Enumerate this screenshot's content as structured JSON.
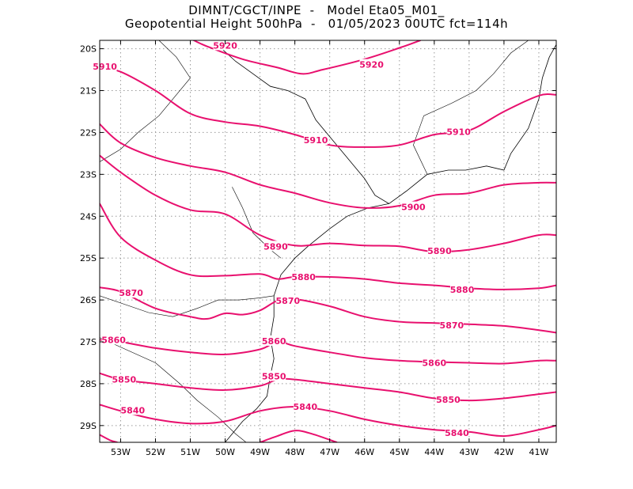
{
  "title": {
    "line1": "DIMNT/CGCT/INPE  -   Model Eta05_M01_",
    "line2": "Geopotential Height 500hPa  -   01/05/2023 00UTC fct=114h"
  },
  "colors": {
    "contour": "#e8106e",
    "coast": "#000000",
    "grid": "#9a9a9a"
  },
  "map": {
    "lon_range": [
      -53.6,
      -40.5
    ],
    "lat_range": [
      -29.4,
      -19.8
    ],
    "lon_ticks": [
      {
        "value": -53,
        "label": "53W"
      },
      {
        "value": -52,
        "label": "52W"
      },
      {
        "value": -51,
        "label": "51W"
      },
      {
        "value": -50,
        "label": "50W"
      },
      {
        "value": -49,
        "label": "49W"
      },
      {
        "value": -48,
        "label": "48W"
      },
      {
        "value": -47,
        "label": "47W"
      },
      {
        "value": -46,
        "label": "46W"
      },
      {
        "value": -45,
        "label": "45W"
      },
      {
        "value": -44,
        "label": "44W"
      },
      {
        "value": -43,
        "label": "43W"
      },
      {
        "value": -42,
        "label": "42W"
      },
      {
        "value": -41,
        "label": "41W"
      }
    ],
    "lat_ticks": [
      {
        "value": -20,
        "label": "20S"
      },
      {
        "value": -21,
        "label": "21S"
      },
      {
        "value": -22,
        "label": "22S"
      },
      {
        "value": -23,
        "label": "23S"
      },
      {
        "value": -24,
        "label": "24S"
      },
      {
        "value": -25,
        "label": "25S"
      },
      {
        "value": -26,
        "label": "26S"
      },
      {
        "value": -27,
        "label": "27S"
      },
      {
        "value": -28,
        "label": "28S"
      },
      {
        "value": -29,
        "label": "29S"
      }
    ]
  },
  "contours": [
    {
      "level": "5920",
      "points": [
        [
          -50.9,
          -19.8
        ],
        [
          -50.5,
          -19.95
        ],
        [
          -49.5,
          -20.25
        ],
        [
          -48.5,
          -20.45
        ],
        [
          -47.8,
          -20.6
        ],
        [
          -47.2,
          -20.5
        ],
        [
          -46.0,
          -20.25
        ],
        [
          -45.0,
          -19.98
        ],
        [
          -44.4,
          -19.8
        ]
      ],
      "labels": [
        {
          "text": "5920",
          "lon": -50.0,
          "lat": -19.92
        },
        {
          "text": "5920",
          "lon": -45.8,
          "lat": -20.38
        }
      ]
    },
    {
      "level": "5910",
      "points": [
        [
          -53.6,
          -20.45
        ],
        [
          -53.0,
          -20.55
        ],
        [
          -52.0,
          -21.0
        ],
        [
          -51.0,
          -21.55
        ],
        [
          -50.0,
          -21.75
        ],
        [
          -49.0,
          -21.85
        ],
        [
          -48.0,
          -22.05
        ],
        [
          -47.0,
          -22.3
        ],
        [
          -46.0,
          -22.35
        ],
        [
          -45.0,
          -22.3
        ],
        [
          -44.0,
          -22.05
        ],
        [
          -43.0,
          -21.95
        ],
        [
          -42.0,
          -21.5
        ],
        [
          -41.0,
          -21.12
        ],
        [
          -40.5,
          -21.1
        ]
      ],
      "labels": [
        {
          "text": "5910",
          "lon": -53.45,
          "lat": -20.42
        },
        {
          "text": "5910",
          "lon": -47.4,
          "lat": -22.18
        },
        {
          "text": "5910",
          "lon": -43.3,
          "lat": -21.98
        }
      ]
    },
    {
      "level": "5900",
      "points": [
        [
          -53.6,
          -21.8
        ],
        [
          -53.0,
          -22.25
        ],
        [
          -52.0,
          -22.6
        ],
        [
          -51.0,
          -22.8
        ],
        [
          -50.0,
          -22.95
        ],
        [
          -49.0,
          -23.25
        ],
        [
          -48.0,
          -23.45
        ],
        [
          -47.0,
          -23.68
        ],
        [
          -46.0,
          -23.8
        ],
        [
          -45.0,
          -23.75
        ],
        [
          -44.0,
          -23.5
        ],
        [
          -43.0,
          -23.45
        ],
        [
          -42.0,
          -23.25
        ],
        [
          -41.0,
          -23.2
        ],
        [
          -40.5,
          -23.2
        ]
      ],
      "labels": [
        {
          "text": "5900",
          "lon": -44.6,
          "lat": -23.78
        }
      ]
    },
    {
      "level": "5890",
      "points": [
        [
          -53.6,
          -22.55
        ],
        [
          -53.0,
          -22.95
        ],
        [
          -52.0,
          -23.5
        ],
        [
          -51.0,
          -23.85
        ],
        [
          -50.0,
          -23.95
        ],
        [
          -49.0,
          -24.45
        ],
        [
          -48.0,
          -24.7
        ],
        [
          -47.0,
          -24.65
        ],
        [
          -46.0,
          -24.7
        ],
        [
          -45.0,
          -24.72
        ],
        [
          -44.0,
          -24.85
        ],
        [
          -43.0,
          -24.8
        ],
        [
          -42.0,
          -24.65
        ],
        [
          -41.0,
          -24.45
        ],
        [
          -40.5,
          -24.45
        ]
      ],
      "labels": [
        {
          "text": "5890",
          "lon": -48.55,
          "lat": -24.72
        },
        {
          "text": "5890",
          "lon": -43.85,
          "lat": -24.83
        }
      ]
    },
    {
      "level": "5880",
      "points": [
        [
          -53.6,
          -23.7
        ],
        [
          -53.0,
          -24.5
        ],
        [
          -52.0,
          -25.05
        ],
        [
          -51.0,
          -25.4
        ],
        [
          -50.0,
          -25.42
        ],
        [
          -49.0,
          -25.38
        ],
        [
          -48.5,
          -25.5
        ],
        [
          -48.0,
          -25.45
        ],
        [
          -47.0,
          -25.45
        ],
        [
          -46.0,
          -25.5
        ],
        [
          -45.0,
          -25.6
        ],
        [
          -44.0,
          -25.65
        ],
        [
          -43.0,
          -25.72
        ],
        [
          -42.0,
          -25.75
        ],
        [
          -41.0,
          -25.72
        ],
        [
          -40.5,
          -25.65
        ]
      ],
      "labels": [
        {
          "text": "5880",
          "lon": -47.75,
          "lat": -25.45
        },
        {
          "text": "5880",
          "lon": -43.2,
          "lat": -25.75
        }
      ]
    },
    {
      "level": "5870",
      "points": [
        [
          -53.6,
          -25.7
        ],
        [
          -53.0,
          -25.8
        ],
        [
          -52.0,
          -26.2
        ],
        [
          -51.0,
          -26.4
        ],
        [
          -50.5,
          -26.45
        ],
        [
          -50.0,
          -26.32
        ],
        [
          -49.5,
          -26.35
        ],
        [
          -49.0,
          -26.25
        ],
        [
          -48.5,
          -26.02
        ],
        [
          -48.0,
          -25.98
        ],
        [
          -47.0,
          -26.15
        ],
        [
          -46.0,
          -26.4
        ],
        [
          -45.0,
          -26.52
        ],
        [
          -44.0,
          -26.55
        ],
        [
          -43.0,
          -26.58
        ],
        [
          -42.0,
          -26.62
        ],
        [
          -41.0,
          -26.72
        ],
        [
          -40.5,
          -26.78
        ]
      ],
      "labels": [
        {
          "text": "5870",
          "lon": -52.7,
          "lat": -25.83
        },
        {
          "text": "5870",
          "lon": -48.2,
          "lat": -26.02
        },
        {
          "text": "5870",
          "lon": -43.5,
          "lat": -26.6
        }
      ]
    },
    {
      "level": "5860",
      "points": [
        [
          -53.6,
          -26.95
        ],
        [
          -53.0,
          -27.0
        ],
        [
          -52.0,
          -27.15
        ],
        [
          -51.0,
          -27.25
        ],
        [
          -50.0,
          -27.3
        ],
        [
          -49.0,
          -27.18
        ],
        [
          -48.5,
          -27.0
        ],
        [
          -48.0,
          -27.1
        ],
        [
          -47.0,
          -27.25
        ],
        [
          -46.0,
          -27.38
        ],
        [
          -45.0,
          -27.45
        ],
        [
          -44.0,
          -27.48
        ],
        [
          -43.0,
          -27.5
        ],
        [
          -42.0,
          -27.52
        ],
        [
          -41.0,
          -27.45
        ],
        [
          -40.5,
          -27.45
        ]
      ],
      "labels": [
        {
          "text": "5860",
          "lon": -53.2,
          "lat": -26.95
        },
        {
          "text": "5860",
          "lon": -48.6,
          "lat": -26.98
        },
        {
          "text": "5860",
          "lon": -44.0,
          "lat": -27.5
        }
      ]
    },
    {
      "level": "5850",
      "points": [
        [
          -53.6,
          -27.75
        ],
        [
          -53.0,
          -27.9
        ],
        [
          -52.0,
          -28.0
        ],
        [
          -51.0,
          -28.1
        ],
        [
          -50.0,
          -28.15
        ],
        [
          -49.0,
          -28.05
        ],
        [
          -48.5,
          -27.9
        ],
        [
          -48.0,
          -27.9
        ],
        [
          -47.0,
          -28.0
        ],
        [
          -46.0,
          -28.1
        ],
        [
          -45.0,
          -28.2
        ],
        [
          -44.0,
          -28.35
        ],
        [
          -43.0,
          -28.4
        ],
        [
          -42.0,
          -28.35
        ],
        [
          -41.0,
          -28.25
        ],
        [
          -40.5,
          -28.2
        ]
      ],
      "labels": [
        {
          "text": "5850",
          "lon": -52.9,
          "lat": -27.9
        },
        {
          "text": "5850",
          "lon": -48.6,
          "lat": -27.82
        },
        {
          "text": "5850",
          "lon": -43.6,
          "lat": -28.38
        }
      ]
    },
    {
      "level": "5840",
      "points": [
        [
          -53.6,
          -28.5
        ],
        [
          -53.0,
          -28.65
        ],
        [
          -52.0,
          -28.85
        ],
        [
          -51.0,
          -28.95
        ],
        [
          -50.0,
          -28.9
        ],
        [
          -49.0,
          -28.65
        ],
        [
          -48.0,
          -28.55
        ],
        [
          -47.0,
          -28.65
        ],
        [
          -46.0,
          -28.85
        ],
        [
          -45.0,
          -29.0
        ],
        [
          -44.0,
          -29.1
        ],
        [
          -43.0,
          -29.15
        ],
        [
          -42.0,
          -29.25
        ],
        [
          -41.0,
          -29.1
        ],
        [
          -40.5,
          -29.0
        ]
      ],
      "labels": [
        {
          "text": "5840",
          "lon": -52.65,
          "lat": -28.63
        },
        {
          "text": "5840",
          "lon": -47.7,
          "lat": -28.55
        },
        {
          "text": "5840",
          "lon": -43.35,
          "lat": -29.17
        }
      ]
    },
    {
      "level": "5830",
      "points": [
        [
          -53.6,
          -29.22
        ],
        [
          -53.3,
          -29.35
        ],
        [
          -53.1,
          -29.4
        ]
      ],
      "labels": []
    },
    {
      "level": "5830",
      "points": [
        [
          -49.0,
          -29.4
        ],
        [
          -48.5,
          -29.25
        ],
        [
          -48.0,
          -29.12
        ],
        [
          -47.5,
          -29.2
        ],
        [
          -46.8,
          -29.4
        ]
      ],
      "labels": []
    }
  ],
  "coastline": [
    [
      [
        -50.1,
        -20.0
      ],
      [
        -49.7,
        -20.3
      ],
      [
        -49.2,
        -20.6
      ],
      [
        -48.7,
        -20.9
      ],
      [
        -48.2,
        -21.0
      ],
      [
        -47.7,
        -21.2
      ],
      [
        -47.4,
        -21.7
      ],
      [
        -47.0,
        -22.1
      ],
      [
        -46.6,
        -22.5
      ],
      [
        -46.3,
        -22.8
      ],
      [
        -46.0,
        -23.1
      ],
      [
        -45.7,
        -23.5
      ],
      [
        -45.3,
        -23.7
      ],
      [
        -44.8,
        -23.4
      ],
      [
        -44.2,
        -23.0
      ],
      [
        -43.6,
        -22.9
      ],
      [
        -43.1,
        -22.9
      ],
      [
        -42.5,
        -22.8
      ],
      [
        -42.0,
        -22.9
      ],
      [
        -41.8,
        -22.5
      ],
      [
        -41.3,
        -21.9
      ],
      [
        -41.0,
        -21.2
      ],
      [
        -40.9,
        -20.7
      ],
      [
        -40.7,
        -20.2
      ],
      [
        -40.5,
        -19.9
      ]
    ],
    [
      [
        -45.3,
        -23.7
      ],
      [
        -45.9,
        -23.8
      ],
      [
        -46.5,
        -24.0
      ],
      [
        -47.0,
        -24.3
      ],
      [
        -47.6,
        -24.7
      ],
      [
        -48.0,
        -25.0
      ],
      [
        -48.4,
        -25.4
      ],
      [
        -48.6,
        -25.9
      ],
      [
        -48.6,
        -26.4
      ],
      [
        -48.7,
        -26.9
      ],
      [
        -48.6,
        -27.4
      ],
      [
        -48.7,
        -27.8
      ],
      [
        -48.8,
        -28.3
      ],
      [
        -49.1,
        -28.6
      ],
      [
        -49.5,
        -28.9
      ],
      [
        -49.8,
        -29.2
      ],
      [
        -50.0,
        -29.4
      ]
    ]
  ],
  "borders": [
    [
      [
        -51.9,
        -19.8
      ],
      [
        -51.4,
        -20.2
      ],
      [
        -51.0,
        -20.7
      ],
      [
        -51.4,
        -21.1
      ],
      [
        -51.9,
        -21.6
      ],
      [
        -52.5,
        -22.0
      ],
      [
        -53.0,
        -22.4
      ],
      [
        -53.6,
        -22.7
      ]
    ],
    [
      [
        -49.8,
        -23.3
      ],
      [
        -49.5,
        -23.8
      ],
      [
        -49.2,
        -24.4
      ],
      [
        -48.7,
        -24.8
      ],
      [
        -48.4,
        -25.0
      ]
    ],
    [
      [
        -53.6,
        -25.9
      ],
      [
        -52.9,
        -26.1
      ],
      [
        -52.2,
        -26.3
      ],
      [
        -51.5,
        -26.4
      ],
      [
        -50.8,
        -26.2
      ],
      [
        -50.2,
        -26.0
      ],
      [
        -49.6,
        -26.0
      ],
      [
        -49.0,
        -25.95
      ],
      [
        -48.6,
        -25.9
      ]
    ],
    [
      [
        -53.6,
        -26.9
      ],
      [
        -52.8,
        -27.2
      ],
      [
        -52.0,
        -27.5
      ],
      [
        -51.3,
        -28.0
      ],
      [
        -50.8,
        -28.4
      ],
      [
        -50.2,
        -28.8
      ],
      [
        -49.7,
        -29.2
      ],
      [
        -49.4,
        -29.4
      ]
    ],
    [
      [
        -44.2,
        -23.0
      ],
      [
        -44.6,
        -22.3
      ],
      [
        -44.3,
        -21.6
      ],
      [
        -43.5,
        -21.3
      ],
      [
        -42.8,
        -21.0
      ],
      [
        -42.3,
        -20.6
      ],
      [
        -41.8,
        -20.1
      ],
      [
        -41.3,
        -19.8
      ]
    ]
  ]
}
